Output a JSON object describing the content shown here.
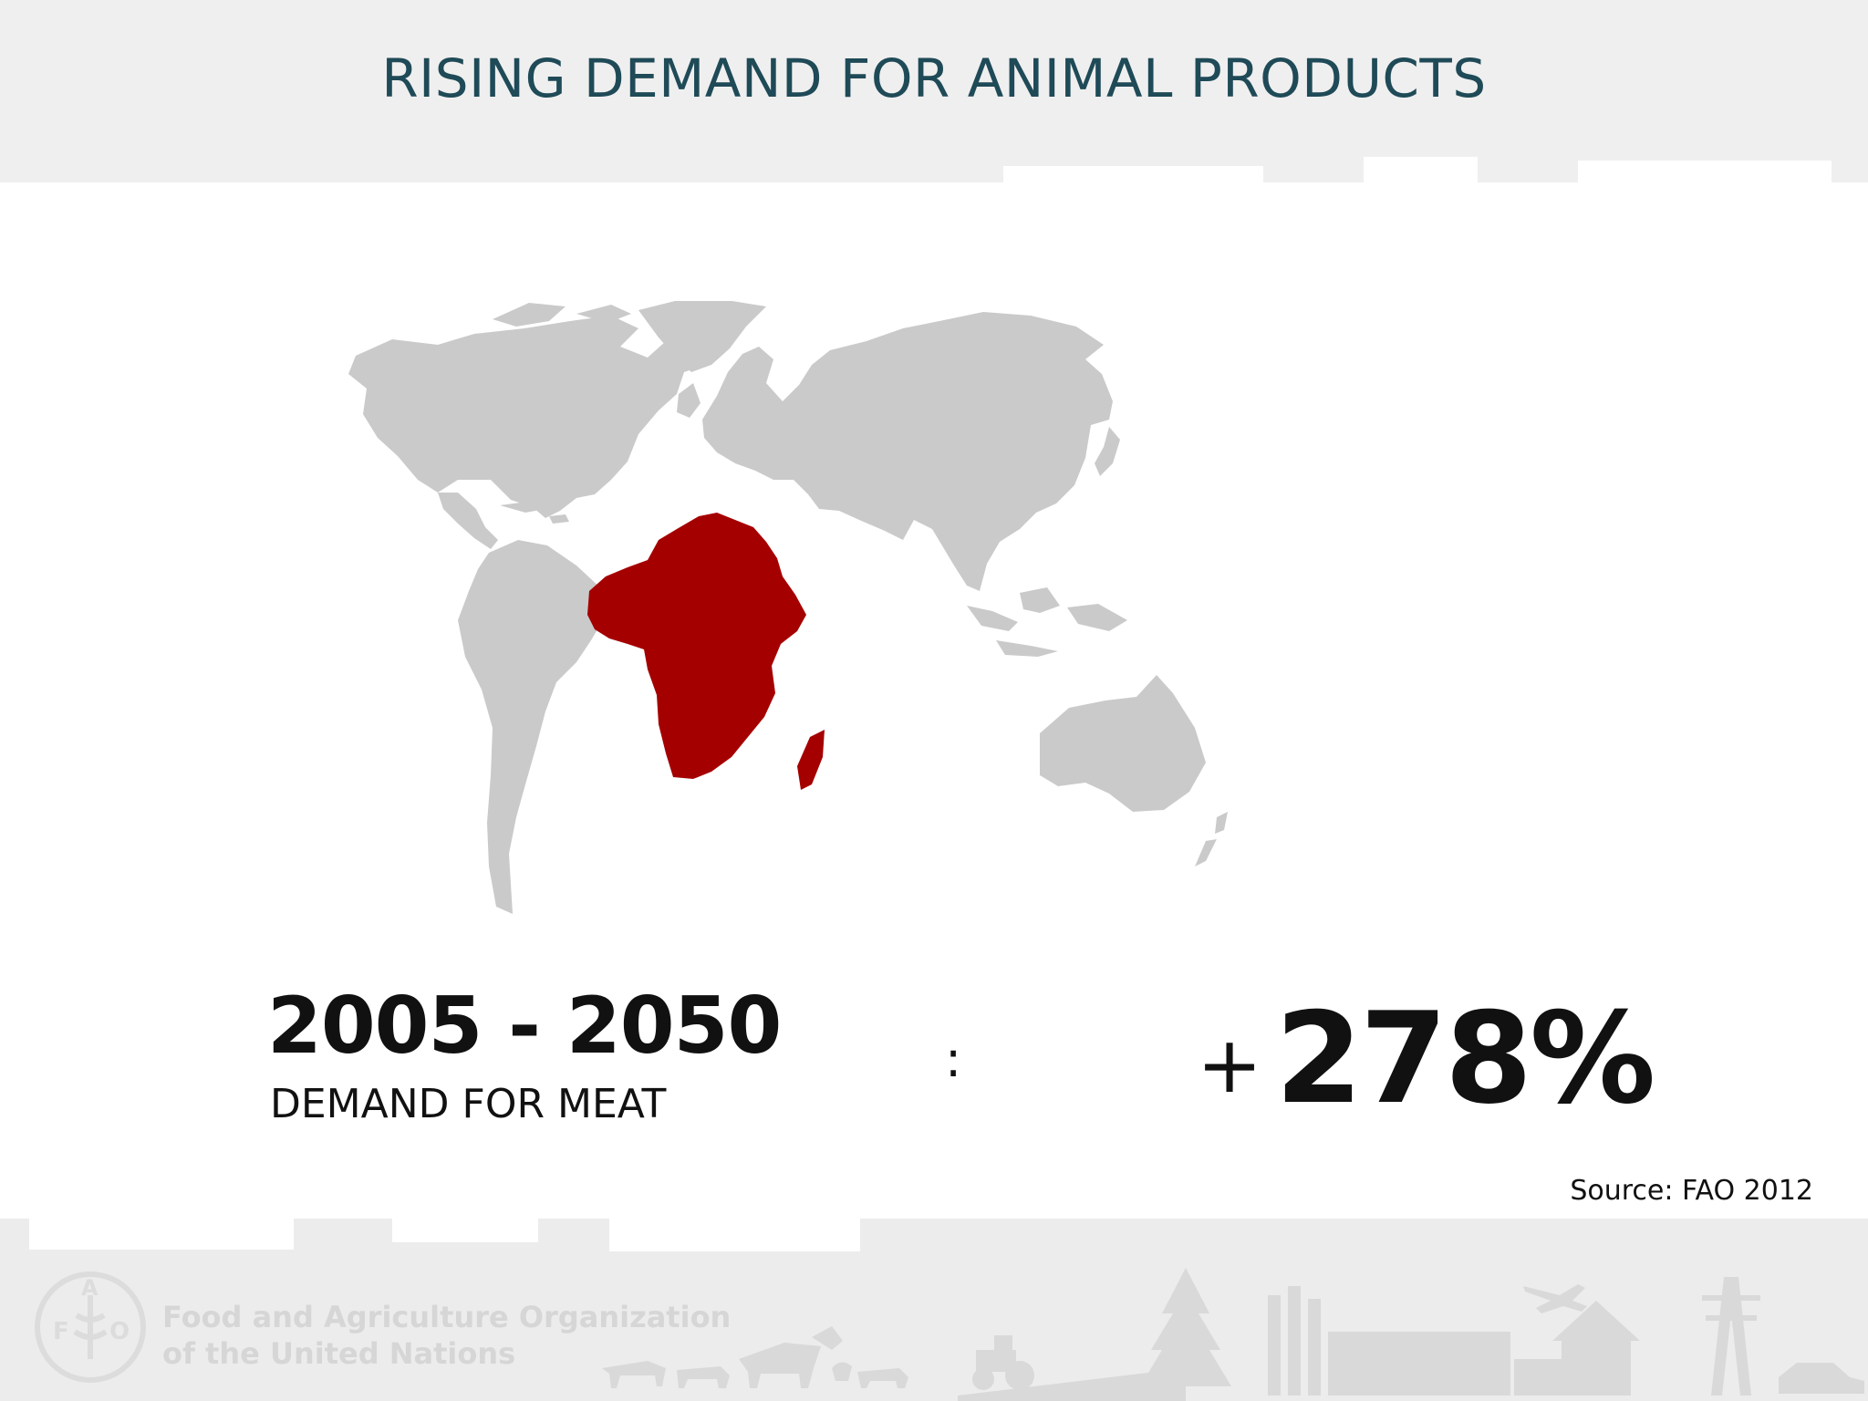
{
  "slide": {
    "title": "RISING DEMAND FOR ANIMAL PRODUCTS",
    "period": "2005 - 2050",
    "metric_label": "DEMAND FOR MEAT",
    "separator": ":",
    "change_sign": "+",
    "change_value": "278%",
    "source": "Source: FAO 2012"
  },
  "map": {
    "highlighted_region": "Africa",
    "highlight_color": "#a50000",
    "land_color": "#cacaca"
  },
  "footer": {
    "org_line1": "Food and Agriculture Organization",
    "org_line2": "of the United Nations",
    "logo_letters": [
      "F",
      "A",
      "O"
    ]
  }
}
